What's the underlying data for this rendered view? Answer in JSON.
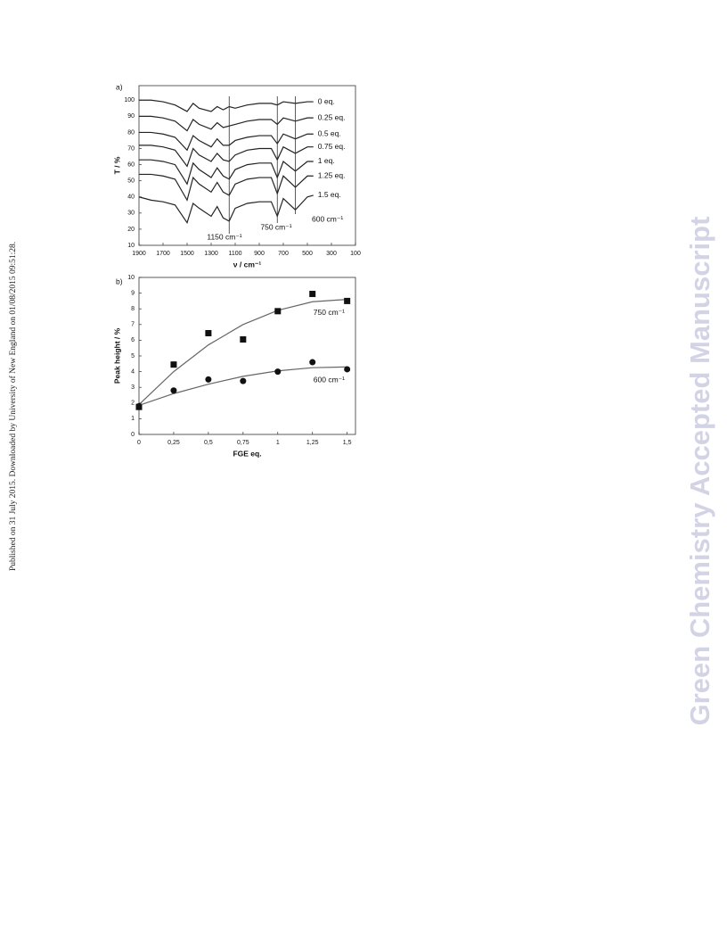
{
  "side_note": "Published on 31 July 2015. Downloaded by University of New England on 01/08/2015 09:51:28.",
  "watermark": "Green Chemistry Accepted Manuscript",
  "chart_data": [
    {
      "type": "line",
      "panel_label": "a)",
      "xlabel": "ν / cm⁻¹",
      "ylabel": "T / %",
      "x": [
        1900,
        1800,
        1700,
        1600,
        1500,
        1450,
        1400,
        1300,
        1250,
        1200,
        1150,
        1100,
        1000,
        900,
        800,
        750,
        700,
        600,
        500,
        450
      ],
      "series": [
        {
          "name": "0 eq.",
          "color": "#222222",
          "values": [
            100,
            100,
            99,
            97,
            93,
            98,
            95,
            93,
            96,
            94,
            96,
            95,
            97,
            98,
            98,
            97,
            99,
            98,
            99,
            99
          ]
        },
        {
          "name": "0.25 eq.",
          "color": "#222222",
          "values": [
            90,
            90,
            89,
            87,
            81,
            88,
            85,
            82,
            86,
            83,
            84,
            85,
            87,
            88,
            88,
            85,
            89,
            87,
            89,
            89
          ]
        },
        {
          "name": "0.5 eq.",
          "color": "#222222",
          "values": [
            80,
            80,
            79,
            77,
            69,
            78,
            75,
            71,
            76,
            72,
            72,
            75,
            77,
            78,
            78,
            73,
            79,
            76,
            79,
            79
          ]
        },
        {
          "name": "0.75 eq.",
          "color": "#222222",
          "values": [
            72,
            72,
            71,
            69,
            59,
            70,
            66,
            62,
            67,
            63,
            62,
            66,
            69,
            70,
            70,
            63,
            71,
            67,
            71,
            71
          ]
        },
        {
          "name": "1 eq.",
          "color": "#222222",
          "values": [
            63,
            63,
            62,
            60,
            48,
            61,
            57,
            52,
            58,
            53,
            51,
            57,
            60,
            61,
            61,
            52,
            62,
            56,
            62,
            62
          ]
        },
        {
          "name": "1.25 eq.",
          "color": "#222222",
          "values": [
            54,
            54,
            53,
            51,
            38,
            52,
            48,
            43,
            49,
            43,
            41,
            48,
            51,
            52,
            52,
            42,
            53,
            46,
            53,
            53
          ]
        },
        {
          "name": "1.5 eq.",
          "color": "#222222",
          "values": [
            40,
            38,
            37,
            35,
            24,
            36,
            33,
            28,
            34,
            27,
            25,
            33,
            36,
            37,
            37,
            28,
            39,
            32,
            40,
            41
          ]
        }
      ],
      "annotations": [
        {
          "text": "1150 cm⁻¹",
          "x": 1150
        },
        {
          "text": "750 cm⁻¹",
          "x": 750
        },
        {
          "text": "600 cm⁻¹",
          "x": 600
        }
      ],
      "xlim": [
        1900,
        100
      ],
      "xticks": [
        1900,
        1700,
        1500,
        1300,
        1100,
        900,
        700,
        500,
        300,
        100
      ],
      "ylim": [
        10,
        109
      ],
      "yticks": [
        10,
        20,
        30,
        40,
        50,
        60,
        70,
        80,
        90,
        100
      ]
    },
    {
      "type": "scatter",
      "panel_label": "b)",
      "xlabel": "FGE eq.",
      "ylabel": "Peak height / %",
      "x": [
        0,
        0.25,
        0.5,
        0.75,
        1,
        1.25,
        1.5
      ],
      "series": [
        {
          "name": "750 cm⁻¹",
          "marker": "square",
          "color": "#111111",
          "values": [
            1.75,
            4.45,
            6.45,
            6.05,
            7.85,
            8.95,
            8.5
          ],
          "fit": [
            1.9,
            4.0,
            5.7,
            7.0,
            7.9,
            8.45,
            8.6
          ]
        },
        {
          "name": "600 cm⁻¹",
          "marker": "circle",
          "color": "#111111",
          "values": [
            1.8,
            2.8,
            3.5,
            3.4,
            4.0,
            4.6,
            4.15
          ],
          "fit": [
            1.85,
            2.6,
            3.2,
            3.7,
            4.05,
            4.25,
            4.3
          ]
        }
      ],
      "fit_color": "#666666",
      "xlim": [
        0,
        1.56
      ],
      "xticks": [
        0,
        {
          "value": 0.25,
          "label": "0,25"
        },
        {
          "value": 0.5,
          "label": "0,5"
        },
        {
          "value": 0.75,
          "label": "0,75"
        },
        1,
        {
          "value": 1.25,
          "label": "1,25"
        },
        {
          "value": 1.5,
          "label": "1,5"
        }
      ],
      "ylim": [
        0,
        10
      ],
      "yticks": [
        0,
        1,
        2,
        3,
        4,
        5,
        6,
        7,
        8,
        9,
        10
      ]
    }
  ]
}
